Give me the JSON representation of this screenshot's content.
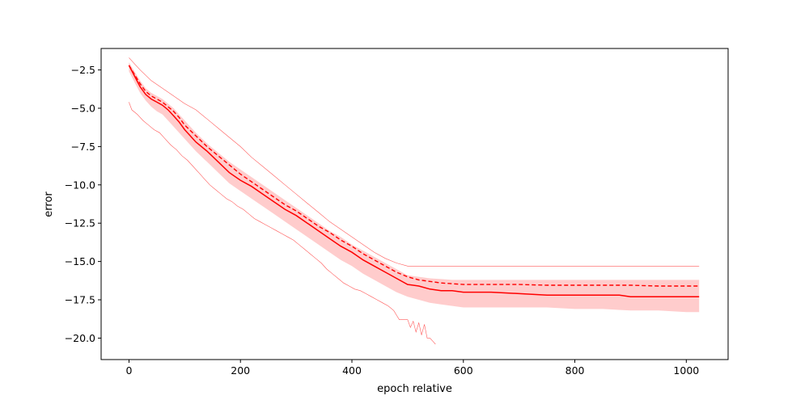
{
  "chart_data": {
    "type": "line",
    "title": "",
    "xlabel": "epoch relative",
    "ylabel": "error",
    "xlim": [
      -50,
      1075
    ],
    "ylim": [
      -21.4,
      -1.1
    ],
    "xticks": [
      0,
      200,
      400,
      600,
      800,
      1000
    ],
    "yticks": [
      -2.5,
      -5.0,
      -7.5,
      -10.0,
      -12.5,
      -15.0,
      -17.5,
      -20.0
    ],
    "grid": false,
    "legend": "none",
    "color": "#ff0000",
    "band_color": "#ffcccc",
    "series": [
      {
        "role": "median",
        "style": "solid",
        "x": [
          0,
          10,
          20,
          30,
          40,
          50,
          60,
          70,
          80,
          90,
          100,
          120,
          140,
          160,
          180,
          200,
          220,
          240,
          260,
          280,
          300,
          320,
          340,
          360,
          380,
          400,
          420,
          440,
          460,
          480,
          500,
          520,
          540,
          560,
          580,
          600,
          650,
          700,
          750,
          780,
          800,
          850,
          880,
          900,
          950,
          1000,
          1023
        ],
        "y": [
          -2.2,
          -2.9,
          -3.6,
          -4.1,
          -4.4,
          -4.6,
          -4.8,
          -5.1,
          -5.5,
          -5.9,
          -6.4,
          -7.2,
          -7.8,
          -8.5,
          -9.2,
          -9.7,
          -10.1,
          -10.6,
          -11.1,
          -11.6,
          -12.0,
          -12.5,
          -13.0,
          -13.5,
          -14.0,
          -14.4,
          -14.9,
          -15.3,
          -15.7,
          -16.1,
          -16.5,
          -16.6,
          -16.8,
          -16.9,
          -16.9,
          -17.0,
          -17.0,
          -17.1,
          -17.2,
          -17.2,
          -17.2,
          -17.2,
          -17.2,
          -17.3,
          -17.3,
          -17.3,
          -17.3
        ]
      },
      {
        "role": "mean",
        "style": "dashed",
        "x": [
          0,
          10,
          20,
          30,
          40,
          50,
          60,
          70,
          80,
          90,
          100,
          120,
          140,
          160,
          180,
          200,
          220,
          240,
          260,
          280,
          300,
          320,
          340,
          360,
          380,
          400,
          420,
          440,
          460,
          480,
          500,
          520,
          540,
          560,
          580,
          600,
          650,
          700,
          750,
          800,
          850,
          900,
          950,
          1000,
          1023
        ],
        "y": [
          -2.2,
          -2.8,
          -3.4,
          -3.9,
          -4.2,
          -4.4,
          -4.6,
          -4.9,
          -5.2,
          -5.6,
          -6.1,
          -6.8,
          -7.5,
          -8.1,
          -8.7,
          -9.3,
          -9.8,
          -10.3,
          -10.8,
          -11.3,
          -11.7,
          -12.2,
          -12.7,
          -13.1,
          -13.6,
          -14.0,
          -14.5,
          -14.9,
          -15.3,
          -15.7,
          -16.0,
          -16.2,
          -16.3,
          -16.4,
          -16.45,
          -16.5,
          -16.5,
          -16.5,
          -16.55,
          -16.55,
          -16.55,
          -16.55,
          -16.6,
          -16.6,
          -16.6
        ]
      },
      {
        "role": "max",
        "style": "thin",
        "x": [
          0,
          20,
          40,
          60,
          80,
          100,
          120,
          140,
          160,
          180,
          200,
          220,
          240,
          260,
          280,
          300,
          320,
          340,
          360,
          380,
          400,
          420,
          440,
          460,
          480,
          500,
          520,
          540,
          560,
          580,
          600,
          650,
          700,
          800,
          900,
          1000,
          1023
        ],
        "y": [
          -1.7,
          -2.5,
          -3.2,
          -3.7,
          -4.2,
          -4.7,
          -5.1,
          -5.7,
          -6.3,
          -6.9,
          -7.5,
          -8.2,
          -8.8,
          -9.4,
          -10.0,
          -10.6,
          -11.2,
          -11.8,
          -12.4,
          -12.9,
          -13.4,
          -13.9,
          -14.4,
          -14.8,
          -15.1,
          -15.3,
          -15.3,
          -15.3,
          -15.3,
          -15.3,
          -15.3,
          -15.3,
          -15.3,
          -15.3,
          -15.3,
          -15.3,
          -15.3
        ]
      },
      {
        "role": "min",
        "style": "thin",
        "x": [
          0,
          5,
          15,
          25,
          35,
          45,
          55,
          65,
          75,
          85,
          95,
          105,
          115,
          125,
          135,
          145,
          155,
          165,
          175,
          185,
          195,
          205,
          215,
          225,
          235,
          245,
          255,
          265,
          275,
          285,
          295,
          305,
          315,
          325,
          335,
          345,
          355,
          365,
          375,
          385,
          395,
          405,
          415,
          425,
          435,
          445,
          455,
          465,
          475,
          480,
          485,
          490,
          500,
          505,
          510,
          515,
          520,
          525,
          530,
          535,
          540,
          545,
          550
        ],
        "y": [
          -4.6,
          -5.1,
          -5.4,
          -5.8,
          -6.1,
          -6.4,
          -6.6,
          -7.0,
          -7.4,
          -7.7,
          -8.1,
          -8.4,
          -8.8,
          -9.2,
          -9.6,
          -10.0,
          -10.3,
          -10.6,
          -10.9,
          -11.1,
          -11.4,
          -11.6,
          -11.9,
          -12.2,
          -12.4,
          -12.6,
          -12.8,
          -13.0,
          -13.2,
          -13.4,
          -13.6,
          -13.9,
          -14.2,
          -14.5,
          -14.8,
          -15.1,
          -15.5,
          -15.8,
          -16.1,
          -16.4,
          -16.6,
          -16.8,
          -16.9,
          -17.1,
          -17.3,
          -17.5,
          -17.7,
          -17.9,
          -18.2,
          -18.5,
          -18.8,
          -18.8,
          -18.8,
          -19.3,
          -18.9,
          -19.6,
          -19.0,
          -19.8,
          -19.1,
          -20.0,
          -20.0,
          -20.2,
          -20.4
        ]
      },
      {
        "role": "band",
        "style": "fill",
        "x": [
          0,
          10,
          20,
          30,
          40,
          50,
          60,
          70,
          80,
          90,
          100,
          120,
          140,
          160,
          180,
          200,
          220,
          240,
          260,
          280,
          300,
          320,
          340,
          360,
          380,
          400,
          420,
          440,
          460,
          480,
          500,
          520,
          540,
          560,
          580,
          600,
          650,
          700,
          750,
          800,
          850,
          900,
          950,
          1000,
          1023
        ],
        "upper": [
          -2.0,
          -2.6,
          -3.2,
          -3.7,
          -4.0,
          -4.2,
          -4.4,
          -4.7,
          -5.0,
          -5.4,
          -5.8,
          -6.6,
          -7.3,
          -7.9,
          -8.5,
          -9.0,
          -9.5,
          -10.0,
          -10.5,
          -11.0,
          -11.5,
          -12.0,
          -12.5,
          -13.0,
          -13.4,
          -13.9,
          -14.3,
          -14.7,
          -15.1,
          -15.5,
          -15.9,
          -16.0,
          -16.1,
          -16.15,
          -16.2,
          -16.2,
          -16.2,
          -16.2,
          -16.2,
          -16.2,
          -16.2,
          -16.2,
          -16.2,
          -16.2,
          -16.2
        ],
        "lower": [
          -2.6,
          -3.3,
          -4.0,
          -4.5,
          -4.9,
          -5.2,
          -5.4,
          -5.8,
          -6.2,
          -6.6,
          -7.0,
          -7.8,
          -8.5,
          -9.2,
          -9.9,
          -10.4,
          -10.9,
          -11.4,
          -11.9,
          -12.4,
          -12.9,
          -13.4,
          -13.9,
          -14.4,
          -14.9,
          -15.3,
          -15.8,
          -16.2,
          -16.6,
          -17.0,
          -17.3,
          -17.5,
          -17.7,
          -17.8,
          -17.9,
          -18.0,
          -18.0,
          -18.0,
          -18.0,
          -18.1,
          -18.1,
          -18.2,
          -18.2,
          -18.3,
          -18.3
        ]
      }
    ]
  }
}
